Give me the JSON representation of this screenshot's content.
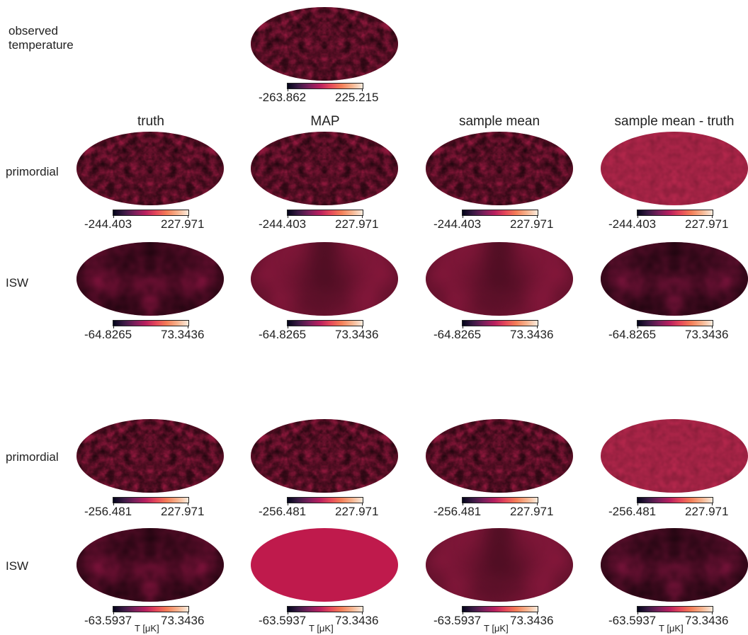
{
  "top": {
    "label_line1": "observed",
    "label_line2": "temperature",
    "colorbar": {
      "min": "-263.862",
      "max": "225.215"
    },
    "style": "fine"
  },
  "columns": [
    "truth",
    "MAP",
    "sample mean",
    "sample mean - truth"
  ],
  "unit_label": "T [μK]",
  "colormap": [
    "#03051a",
    "#3b1a45",
    "#7a1f5b",
    "#b81f5e",
    "#e5485a",
    "#f47e58",
    "#f6b48f",
    "#faebdd"
  ],
  "groups": [
    {
      "rows": [
        {
          "label": "primordial",
          "colorbar": {
            "min": "-244.403",
            "max": "227.971"
          },
          "panels": [
            "fine",
            "fine",
            "fine",
            "faint"
          ]
        },
        {
          "label": "ISW",
          "colorbar": {
            "min": "-64.8265",
            "max": "73.3436"
          },
          "panels": [
            "coarse",
            "smooth",
            "smooth",
            "coarse-dark"
          ]
        }
      ]
    },
    {
      "rows": [
        {
          "label": "primordial",
          "colorbar": {
            "min": "-256.481",
            "max": "227.971"
          },
          "panels": [
            "fine",
            "fine",
            "fine",
            "faint"
          ]
        },
        {
          "label": "ISW",
          "colorbar": {
            "min": "-63.5937",
            "max": "73.3436"
          },
          "panels": [
            "coarse",
            "flat",
            "smooth",
            "coarse-dark"
          ]
        }
      ]
    }
  ]
}
